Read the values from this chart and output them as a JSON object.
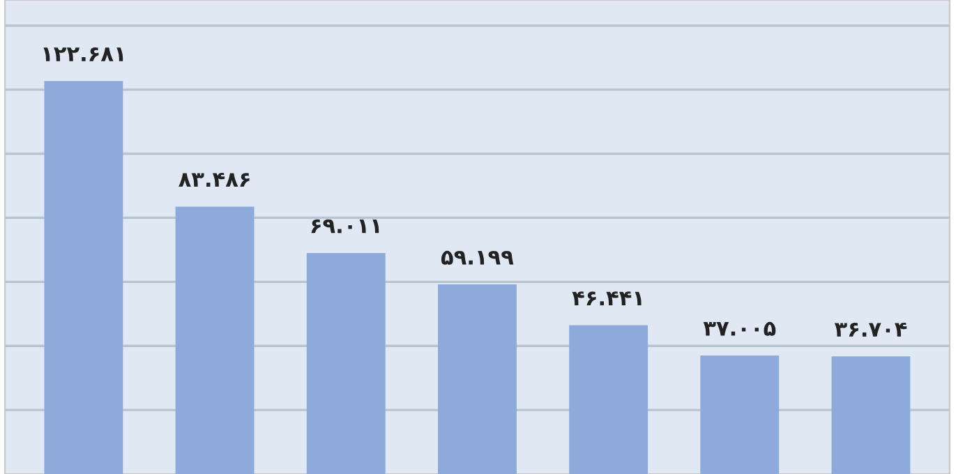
{
  "chart_data": {
    "type": "bar",
    "categories": [
      null,
      null,
      null,
      null,
      null,
      null,
      null
    ],
    "values": [
      122.681,
      83.486,
      69.011,
      59.199,
      46.441,
      37.005,
      36.704
    ],
    "value_labels": [
      "۱۲۲.۶۸۱",
      "۸۳.۴۸۶",
      "۶۹.۰۱۱",
      "۵۹.۱۹۹",
      "۴۶.۴۴۱",
      "۳۷.۰۰۵",
      "۳۶.۷۰۴"
    ],
    "color": "#8eaadb",
    "ylim": [
      0,
      148
    ],
    "yticks": [
      {
        "value": 20,
        "label": null
      },
      {
        "value": 40,
        "label": null
      },
      {
        "value": 60,
        "label": null
      },
      {
        "value": 80,
        "label": null
      },
      {
        "value": 100,
        "label": null
      },
      {
        "value": 120,
        "label": null
      },
      {
        "value": 140,
        "label": null
      }
    ],
    "grid": "y"
  }
}
